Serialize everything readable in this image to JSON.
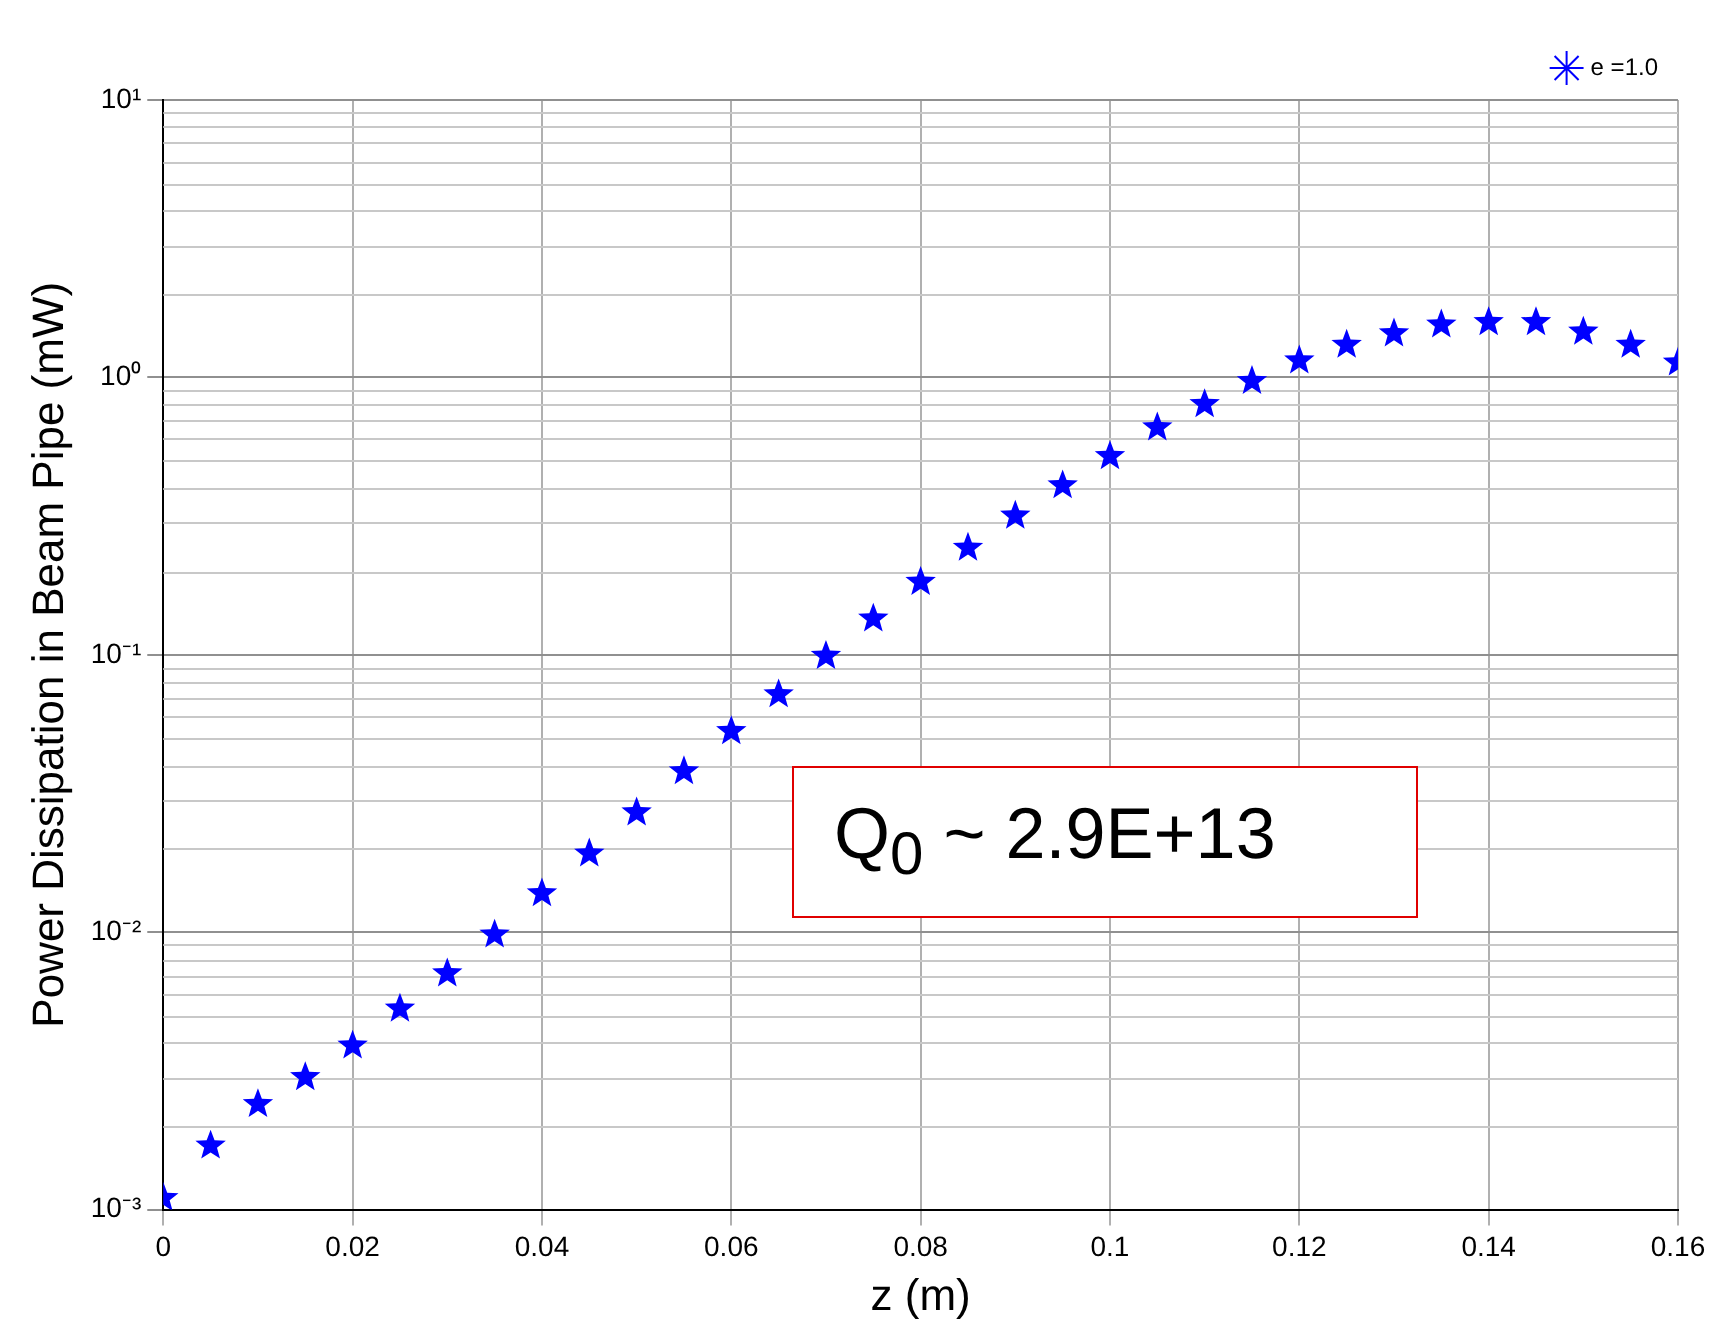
{
  "chart_data": {
    "type": "scatter",
    "xlabel": "z (m)",
    "ylabel": "Power Dissipation in Beam Pipe (mW)",
    "x": [
      0,
      0.005,
      0.01,
      0.015,
      0.02,
      0.025,
      0.03,
      0.035,
      0.04,
      0.045,
      0.05,
      0.055,
      0.06,
      0.065,
      0.07,
      0.075,
      0.08,
      0.085,
      0.09,
      0.095,
      0.1,
      0.105,
      0.11,
      0.115,
      0.12,
      0.125,
      0.13,
      0.135,
      0.14,
      0.145,
      0.15,
      0.155,
      0.16
    ],
    "series": [
      {
        "name": "e =1.0",
        "color": "#0000ff",
        "values": [
          0.0011,
          0.0017,
          0.0024,
          0.003,
          0.0039,
          0.0053,
          0.0071,
          0.0098,
          0.0138,
          0.0192,
          0.027,
          0.038,
          0.053,
          0.072,
          0.099,
          0.135,
          0.183,
          0.243,
          0.317,
          0.408,
          0.52,
          0.66,
          0.8,
          0.97,
          1.15,
          1.31,
          1.44,
          1.55,
          1.58,
          1.58,
          1.46,
          1.31,
          1.13
        ]
      }
    ],
    "xlim": [
      0,
      0.16
    ],
    "xticks": [
      0,
      0.02,
      0.04,
      0.06,
      0.08,
      0.1,
      0.12,
      0.14,
      0.16
    ],
    "ylim": [
      0.001,
      10
    ],
    "yticks": [
      {
        "value": 0.001,
        "label": "10⁻³"
      },
      {
        "value": 0.01,
        "label": "10⁻²"
      },
      {
        "value": 0.1,
        "label": "10⁻¹"
      },
      {
        "value": 1,
        "label": "10⁰"
      },
      {
        "value": 10,
        "label": "10¹"
      }
    ],
    "log": "y",
    "grid": true,
    "legend": "top right",
    "marker": "star",
    "annotations": [
      "Q$_{0}$ ~ 2.9E+13"
    ]
  }
}
